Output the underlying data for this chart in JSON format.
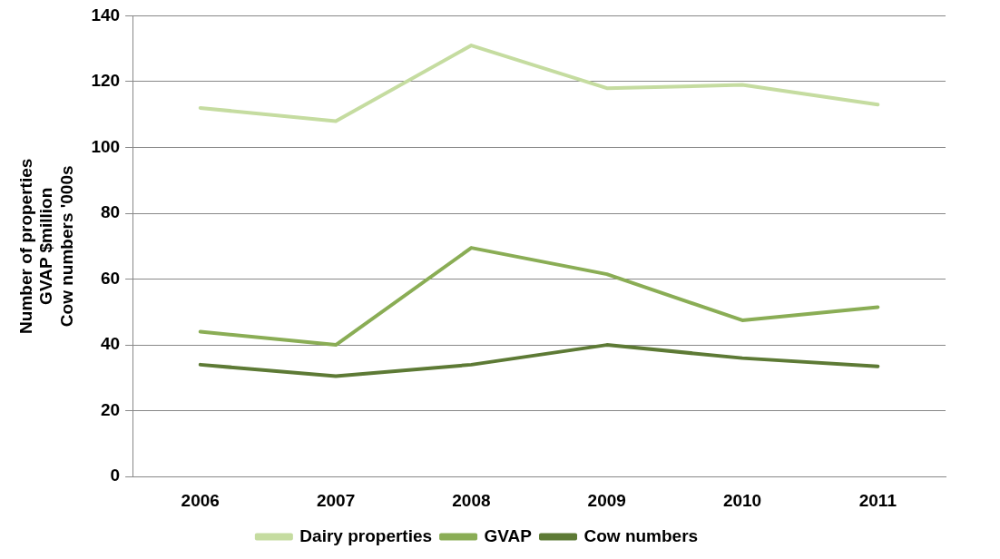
{
  "chart_data": {
    "type": "line",
    "ylabel": "Number of properties\nGVAP $million\nCow numbers '000s",
    "categories": [
      "2006",
      "2007",
      "2008",
      "2009",
      "2010",
      "2011"
    ],
    "series": [
      {
        "name": "Dairy properties",
        "color": "#c5dca0",
        "values": [
          112,
          108,
          131,
          118,
          119,
          113
        ]
      },
      {
        "name": "GVAP",
        "color": "#8aad55",
        "values": [
          44,
          40,
          69.5,
          61.5,
          47.5,
          51.5
        ]
      },
      {
        "name": "Cow numbers",
        "color": "#5d7a35",
        "values": [
          34,
          30.5,
          34,
          40,
          36,
          33.5
        ]
      }
    ],
    "ylim": [
      0,
      140
    ],
    "yticks": [
      0,
      20,
      40,
      60,
      80,
      100,
      120,
      140
    ],
    "grid": "y",
    "legend": "bottom",
    "marker": "none",
    "line_style": "solid"
  }
}
